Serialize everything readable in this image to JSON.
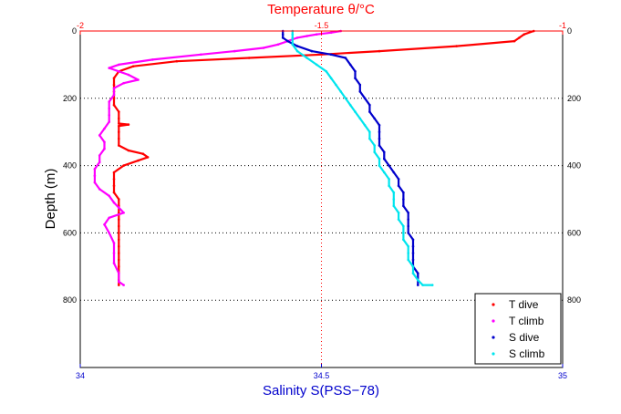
{
  "chart_data": {
    "type": "scatter",
    "top_axis": {
      "label": "Temperature θ/°C",
      "range": [
        -2,
        -1
      ],
      "ticks": [
        "-2",
        "-1.5",
        "-1"
      ],
      "color": "#ff0000"
    },
    "bottom_axis": {
      "label": "Salinity S(PSS−78)",
      "range": [
        34,
        35
      ],
      "ticks": [
        "34",
        "34.5",
        "35"
      ],
      "color": "#0000cc"
    },
    "y_axis": {
      "label": "Depth (m)",
      "range": [
        0,
        1000
      ],
      "reversed": true,
      "ticks": [
        "0",
        "200",
        "400",
        "600",
        "800"
      ]
    },
    "grid": true,
    "legend_position": "bottom-right",
    "series": [
      {
        "name": "T dive",
        "axis": "top",
        "color": "#ff0000",
        "points": [
          [
            -1.06,
            0
          ],
          [
            -1.08,
            10
          ],
          [
            -1.09,
            20
          ],
          [
            -1.1,
            30
          ],
          [
            -1.22,
            45
          ],
          [
            -1.38,
            60
          ],
          [
            -1.5,
            70
          ],
          [
            -1.65,
            80
          ],
          [
            -1.8,
            90
          ],
          [
            -1.89,
            105
          ],
          [
            -1.92,
            120
          ],
          [
            -1.93,
            140
          ],
          [
            -1.93,
            160
          ],
          [
            -1.93,
            180
          ],
          [
            -1.93,
            200
          ],
          [
            -1.93,
            220
          ],
          [
            -1.92,
            240
          ],
          [
            -1.92,
            260
          ],
          [
            -1.92,
            275
          ],
          [
            -1.9,
            278
          ],
          [
            -1.92,
            282
          ],
          [
            -1.92,
            300
          ],
          [
            -1.92,
            320
          ],
          [
            -1.92,
            340
          ],
          [
            -1.9,
            355
          ],
          [
            -1.87,
            365
          ],
          [
            -1.86,
            375
          ],
          [
            -1.88,
            385
          ],
          [
            -1.91,
            400
          ],
          [
            -1.93,
            420
          ],
          [
            -1.93,
            440
          ],
          [
            -1.93,
            460
          ],
          [
            -1.93,
            480
          ],
          [
            -1.92,
            500
          ],
          [
            -1.92,
            520
          ],
          [
            -1.92,
            540
          ],
          [
            -1.92,
            560
          ],
          [
            -1.92,
            580
          ],
          [
            -1.92,
            600
          ],
          [
            -1.92,
            620
          ],
          [
            -1.92,
            640
          ],
          [
            -1.92,
            660
          ],
          [
            -1.92,
            680
          ],
          [
            -1.92,
            700
          ],
          [
            -1.92,
            720
          ],
          [
            -1.92,
            740
          ],
          [
            -1.92,
            755
          ]
        ]
      },
      {
        "name": "T climb",
        "axis": "top",
        "color": "#ff00ff",
        "points": [
          [
            -1.46,
            0
          ],
          [
            -1.48,
            5
          ],
          [
            -1.51,
            10
          ],
          [
            -1.53,
            15
          ],
          [
            -1.55,
            20
          ],
          [
            -1.57,
            30
          ],
          [
            -1.59,
            40
          ],
          [
            -1.62,
            50
          ],
          [
            -1.68,
            60
          ],
          [
            -1.75,
            70
          ],
          [
            -1.85,
            85
          ],
          [
            -1.92,
            100
          ],
          [
            -1.94,
            110
          ],
          [
            -1.92,
            120
          ],
          [
            -1.9,
            130
          ],
          [
            -1.88,
            145
          ],
          [
            -1.91,
            155
          ],
          [
            -1.93,
            170
          ],
          [
            -1.93,
            190
          ],
          [
            -1.94,
            210
          ],
          [
            -1.94,
            230
          ],
          [
            -1.94,
            250
          ],
          [
            -1.94,
            270
          ],
          [
            -1.95,
            290
          ],
          [
            -1.96,
            310
          ],
          [
            -1.95,
            330
          ],
          [
            -1.95,
            350
          ],
          [
            -1.96,
            370
          ],
          [
            -1.96,
            390
          ],
          [
            -1.97,
            410
          ],
          [
            -1.97,
            430
          ],
          [
            -1.97,
            450
          ],
          [
            -1.96,
            470
          ],
          [
            -1.94,
            490
          ],
          [
            -1.93,
            510
          ],
          [
            -1.92,
            525
          ],
          [
            -1.91,
            540
          ],
          [
            -1.94,
            555
          ],
          [
            -1.95,
            575
          ],
          [
            -1.94,
            600
          ],
          [
            -1.93,
            630
          ],
          [
            -1.93,
            660
          ],
          [
            -1.93,
            690
          ],
          [
            -1.92,
            720
          ],
          [
            -1.92,
            745
          ],
          [
            -1.91,
            755
          ]
        ]
      },
      {
        "name": "S dive",
        "axis": "bottom",
        "color": "#0000cc",
        "points": [
          [
            34.42,
            0
          ],
          [
            34.42,
            10
          ],
          [
            34.42,
            20
          ],
          [
            34.43,
            30
          ],
          [
            34.45,
            45
          ],
          [
            34.48,
            60
          ],
          [
            34.52,
            70
          ],
          [
            34.55,
            80
          ],
          [
            34.56,
            100
          ],
          [
            34.57,
            120
          ],
          [
            34.57,
            140
          ],
          [
            34.58,
            160
          ],
          [
            34.58,
            180
          ],
          [
            34.59,
            200
          ],
          [
            34.6,
            220
          ],
          [
            34.6,
            240
          ],
          [
            34.61,
            260
          ],
          [
            34.62,
            280
          ],
          [
            34.62,
            300
          ],
          [
            34.62,
            320
          ],
          [
            34.62,
            340
          ],
          [
            34.63,
            360
          ],
          [
            34.63,
            380
          ],
          [
            34.64,
            400
          ],
          [
            34.65,
            420
          ],
          [
            34.66,
            440
          ],
          [
            34.66,
            460
          ],
          [
            34.67,
            480
          ],
          [
            34.67,
            500
          ],
          [
            34.67,
            520
          ],
          [
            34.68,
            540
          ],
          [
            34.68,
            560
          ],
          [
            34.68,
            580
          ],
          [
            34.68,
            600
          ],
          [
            34.69,
            620
          ],
          [
            34.69,
            640
          ],
          [
            34.69,
            660
          ],
          [
            34.69,
            680
          ],
          [
            34.69,
            700
          ],
          [
            34.7,
            720
          ],
          [
            34.7,
            740
          ],
          [
            34.7,
            755
          ]
        ]
      },
      {
        "name": "S climb",
        "axis": "bottom",
        "color": "#00e5ee",
        "points": [
          [
            34.44,
            0
          ],
          [
            34.44,
            10
          ],
          [
            34.44,
            20
          ],
          [
            34.44,
            40
          ],
          [
            34.45,
            60
          ],
          [
            34.47,
            80
          ],
          [
            34.49,
            100
          ],
          [
            34.51,
            120
          ],
          [
            34.52,
            140
          ],
          [
            34.53,
            160
          ],
          [
            34.54,
            180
          ],
          [
            34.55,
            200
          ],
          [
            34.56,
            220
          ],
          [
            34.57,
            240
          ],
          [
            34.58,
            260
          ],
          [
            34.59,
            280
          ],
          [
            34.6,
            300
          ],
          [
            34.6,
            320
          ],
          [
            34.61,
            340
          ],
          [
            34.61,
            360
          ],
          [
            34.62,
            380
          ],
          [
            34.62,
            400
          ],
          [
            34.63,
            420
          ],
          [
            34.64,
            440
          ],
          [
            34.64,
            460
          ],
          [
            34.65,
            480
          ],
          [
            34.65,
            500
          ],
          [
            34.65,
            520
          ],
          [
            34.66,
            540
          ],
          [
            34.66,
            560
          ],
          [
            34.67,
            580
          ],
          [
            34.67,
            600
          ],
          [
            34.67,
            620
          ],
          [
            34.68,
            640
          ],
          [
            34.68,
            660
          ],
          [
            34.68,
            680
          ],
          [
            34.69,
            700
          ],
          [
            34.69,
            720
          ],
          [
            34.7,
            740
          ],
          [
            34.71,
            755
          ],
          [
            34.73,
            755
          ]
        ]
      }
    ]
  }
}
